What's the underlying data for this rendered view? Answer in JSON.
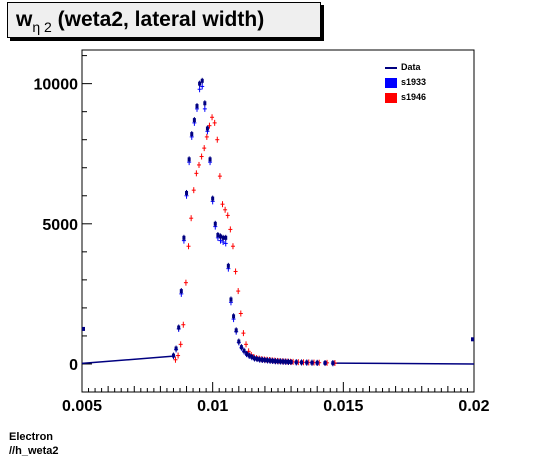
{
  "title": {
    "main": "w",
    "sub": "η 2",
    "rest": " (weta2, lateral width)"
  },
  "legend": {
    "items": [
      {
        "label": "Data",
        "color": "#000080",
        "kind": "line"
      },
      {
        "label": "s1933",
        "color": "#0000ff",
        "kind": "box"
      },
      {
        "label": "s1946",
        "color": "#ff0000",
        "kind": "box"
      }
    ]
  },
  "footer": {
    "line1": "Electron",
    "line2": "//h_weta2"
  },
  "chart_data": {
    "type": "scatter",
    "title": "wη 2 (weta2, lateral width)",
    "xlabel": "",
    "ylabel": "",
    "xlim": [
      0.005,
      0.02
    ],
    "ylim": [
      -1000,
      11200
    ],
    "xticks": [
      0.005,
      0.01,
      0.015,
      0.02
    ],
    "xtick_labels": [
      "0.005",
      "0.01",
      "0.015",
      "0.02"
    ],
    "yticks": [
      0,
      5000,
      10000
    ],
    "ytick_labels": [
      "0",
      "5000",
      "10000"
    ],
    "grid": false,
    "legend_position": "top-right",
    "x": [
      0.0085,
      0.0086,
      0.0087,
      0.0088,
      0.0089,
      0.009,
      0.0091,
      0.0092,
      0.0093,
      0.0094,
      0.0095,
      0.0096,
      0.0097,
      0.0098,
      0.0099,
      0.01,
      0.0101,
      0.0102,
      0.0103,
      0.0104,
      0.0105,
      0.0106,
      0.0107,
      0.0108,
      0.0109,
      0.011,
      0.0111,
      0.0112,
      0.0113,
      0.0114,
      0.0115,
      0.0116,
      0.0117,
      0.0118,
      0.0119,
      0.012,
      0.0121,
      0.0122,
      0.0123,
      0.0124,
      0.0125,
      0.0126,
      0.0127,
      0.0128,
      0.0129,
      0.013,
      0.0132,
      0.0134,
      0.0136,
      0.0138,
      0.014,
      0.0143,
      0.0146
    ],
    "series": [
      {
        "name": "Data",
        "color": "#000080",
        "values": [
          300,
          550,
          1300,
          2600,
          4500,
          6100,
          7300,
          8200,
          8700,
          9200,
          10000,
          10100,
          9300,
          8400,
          7300,
          5900,
          5000,
          4600,
          4550,
          4500,
          4500,
          3500,
          2300,
          1700,
          1200,
          800,
          600,
          470,
          360,
          300,
          250,
          200,
          180,
          160,
          150,
          140,
          130,
          120,
          110,
          100,
          95,
          90,
          85,
          80,
          75,
          70,
          60,
          55,
          50,
          45,
          40,
          35,
          30
        ]
      },
      {
        "name": "s1933",
        "color": "#0000ff",
        "values": [
          280,
          520,
          1250,
          2500,
          4400,
          6000,
          7200,
          8100,
          8600,
          9100,
          9800,
          9900,
          9100,
          8300,
          7200,
          5800,
          4900,
          4500,
          4400,
          4350,
          4300,
          3400,
          2200,
          1600,
          1150,
          770,
          580,
          450,
          350,
          290,
          240,
          195,
          175,
          155,
          145,
          135,
          125,
          115,
          105,
          98,
          92,
          88,
          82,
          78,
          73,
          68,
          58,
          53,
          48,
          43,
          38,
          33,
          28
        ]
      },
      {
        "name": "s1946",
        "color": "#ff0000",
        "values": [
          150,
          300,
          700,
          1400,
          2900,
          4200,
          5200,
          6200,
          6800,
          7100,
          7400,
          7700,
          8100,
          8500,
          8800,
          8600,
          8000,
          6700,
          5700,
          5500,
          5300,
          4800,
          4200,
          3300,
          2600,
          1800,
          1100,
          700,
          450,
          320,
          250,
          210,
          190,
          170,
          160,
          150,
          140,
          130,
          120,
          110,
          100,
          95,
          90,
          85,
          80,
          75,
          65,
          60,
          55,
          50,
          45,
          40,
          35
        ]
      }
    ],
    "baseline_series": {
      "x_start": 0.005,
      "x_end": 0.0085,
      "y_start": 20,
      "y_end": 280,
      "tail_x_start": 0.0146,
      "tail_x_end": 0.02,
      "tail_y_start": 30,
      "tail_y_end": 0
    },
    "edge_points": [
      {
        "x": 0.005,
        "y": 1250,
        "color": "#000080"
      },
      {
        "x": 0.02,
        "y": 880,
        "color": "#000080"
      }
    ]
  }
}
